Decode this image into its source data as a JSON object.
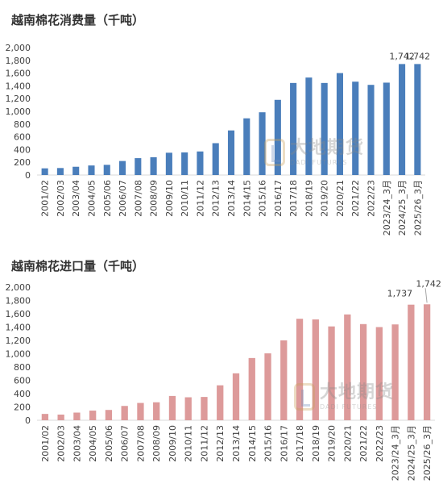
{
  "charts": {
    "consumption": {
      "title": "越南棉花消费量（千吨）"
    },
    "imports": {
      "title": "越南棉花进口量（千吨）"
    }
  },
  "watermark": {
    "cn": "大地期货",
    "en": "DADI FUTURES"
  },
  "colors": {
    "consumption_bar": "#4a7ebb",
    "imports_bar": "#dd9a9a",
    "axis": "#d9d9d9",
    "text": "#404040"
  },
  "chart_data": [
    {
      "type": "bar",
      "title": "越南棉花消费量（千吨）",
      "xlabel": "",
      "ylabel": "",
      "ylim": [
        0,
        2000
      ],
      "yticks": [
        "0",
        "200",
        "400",
        "600",
        "800",
        "1,000",
        "1,200",
        "1,400",
        "1,600",
        "1,800",
        "2,000"
      ],
      "grid": false,
      "categories": [
        "2001/02",
        "2002/03",
        "2003/04",
        "2004/05",
        "2005/06",
        "2006/07",
        "2007/08",
        "2008/09",
        "2009/10",
        "2010/11",
        "2011/12",
        "2012/13",
        "2013/14",
        "2014/15",
        "2015/16",
        "2016/17",
        "2017/18",
        "2018/19",
        "2019/20",
        "2020/21",
        "2021/22",
        "2022/23",
        "2023/24_3月",
        "2024/25_3月",
        "2025/26_3月"
      ],
      "values": [
        105,
        110,
        130,
        150,
        160,
        220,
        265,
        280,
        350,
        355,
        370,
        500,
        700,
        890,
        985,
        1180,
        1445,
        1530,
        1445,
        1600,
        1465,
        1415,
        1450,
        1742,
        1742
      ],
      "data_labels": [
        {
          "index": 23,
          "text": "1,742"
        },
        {
          "index": 24,
          "text": "1,742"
        }
      ]
    },
    {
      "type": "bar",
      "title": "越南棉花进口量（千吨）",
      "xlabel": "",
      "ylabel": "",
      "ylim": [
        0,
        2000
      ],
      "yticks": [
        "0",
        "200",
        "400",
        "600",
        "800",
        "1,000",
        "1,200",
        "1,400",
        "1,600",
        "1,800",
        "2,000"
      ],
      "grid": false,
      "categories": [
        "2001/02",
        "2002/03",
        "2003/04",
        "2004/05",
        "2005/06",
        "2006/07",
        "2007/08",
        "2008/09",
        "2009/10",
        "2010/11",
        "2011/12",
        "2012/13",
        "2013/14",
        "2014/15",
        "2015/16",
        "2016/17",
        "2017/18",
        "2018/19",
        "2019/20",
        "2020/21",
        "2021/22",
        "2022/23",
        "2023/24_3月",
        "2024/25_3月",
        "2025/26_3月"
      ],
      "values": [
        95,
        85,
        115,
        145,
        155,
        215,
        260,
        270,
        365,
        345,
        350,
        525,
        705,
        935,
        1005,
        1200,
        1525,
        1515,
        1410,
        1590,
        1445,
        1400,
        1440,
        1737,
        1742
      ],
      "data_labels": [
        {
          "index": 23,
          "text": "1,737"
        },
        {
          "index": 24,
          "text": "1,742"
        }
      ]
    }
  ]
}
